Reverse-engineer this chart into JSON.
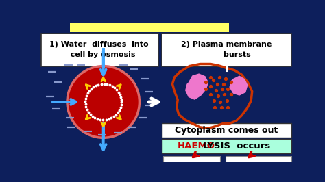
{
  "bg_color": "#0d1f5c",
  "fig_width": 4.74,
  "fig_height": 2.66,
  "yellow_bar_color": "#ffff66",
  "text1_box_color": "#ffffff",
  "text2_box_color": "#ffffff",
  "text3_box_color": "#ffffff",
  "text4_box_color": "#aaffdd",
  "text1": "1) Water  diffuses  into\n   cell by osmosis",
  "text2": "2) Plasma membrane\n        bursts",
  "text3": "Cytoplasm comes out",
  "text4_part1": "HAEMO",
  "text4_part2": "LYSIS  occurs",
  "text4_color1": "#cc0000",
  "text4_color2": "#000000",
  "cell_color": "#bb0000",
  "cell_edge_color": "#dd6666",
  "nucleus_dot_color": "#ffffff",
  "water_arrow_color": "#44aaff",
  "expansion_arrow_color": "#ffcc00",
  "burst_membrane_color": "#cc3300",
  "cytoplasm_color": "#ee77cc",
  "dot_color": "#cc3300",
  "dash_color": "#8899cc",
  "red_arrow_color": "#cc0000",
  "white_arrow_color": "#ffffff",
  "line_color": "#ffffff"
}
